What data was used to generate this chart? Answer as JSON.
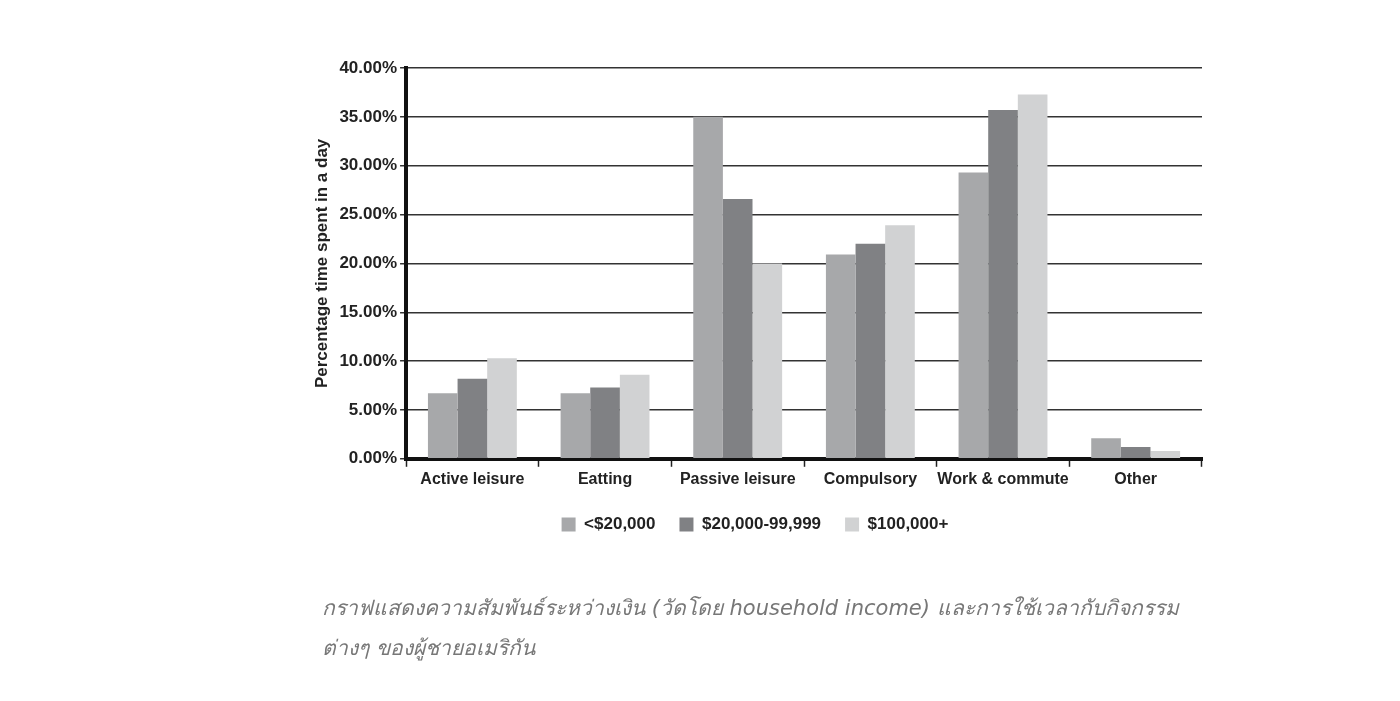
{
  "chart_data": {
    "type": "bar",
    "ylabel": "Percentage time spent in a day",
    "categories": [
      "Active leisure",
      "Eatting",
      "Passive leisure",
      "Compulsory",
      "Work & commute",
      "Other"
    ],
    "series": [
      {
        "name": "<$20,000",
        "color": "#a7a8aa",
        "values": [
          6.7,
          6.7,
          35.0,
          20.9,
          29.3,
          2.1
        ]
      },
      {
        "name": "$20,000-99,999",
        "color": "#808184",
        "values": [
          8.2,
          7.3,
          26.6,
          22.0,
          35.7,
          1.2
        ]
      },
      {
        "name": "$100,000+",
        "color": "#d1d2d3",
        "values": [
          10.3,
          8.6,
          20.0,
          23.9,
          37.3,
          0.8
        ]
      }
    ],
    "ylim": [
      0,
      40
    ],
    "yticks": [
      {
        "value": 0,
        "label": "0.00%"
      },
      {
        "value": 5,
        "label": "5.00%"
      },
      {
        "value": 10,
        "label": "10.00%"
      },
      {
        "value": 15,
        "label": "15.00%"
      },
      {
        "value": 20,
        "label": "20.00%"
      },
      {
        "value": 25,
        "label": "25.00%"
      },
      {
        "value": 30,
        "label": "30.00%"
      },
      {
        "value": 35,
        "label": "35.00%"
      },
      {
        "value": 40,
        "label": "40.00%"
      }
    ],
    "grid": "y",
    "legend": "bottom",
    "annotations": [
      "กราฟแสดงความสัมพันธ์ระหว่างเงิน (วัดโดย household income) และการใช้เวลากับกิจกรรมต่างๆ ของผู้ชายอเมริกัน"
    ]
  }
}
